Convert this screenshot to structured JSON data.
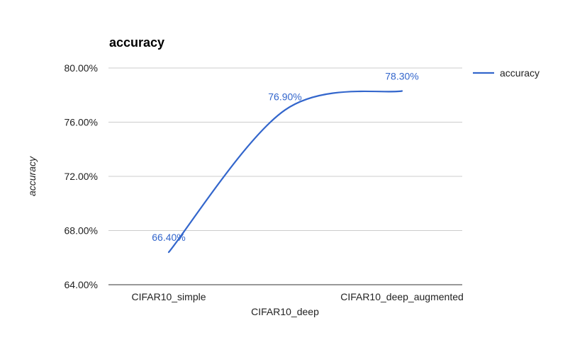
{
  "chart_data": {
    "type": "line",
    "title": "accuracy",
    "xlabel": "",
    "ylabel": "accuracy",
    "categories": [
      "CIFAR10_simple",
      "CIFAR10_deep",
      "CIFAR10_deep_augmented"
    ],
    "series": [
      {
        "name": "accuracy",
        "values": [
          66.4,
          76.9,
          78.3
        ],
        "labels": [
          "66.40%",
          "76.90%",
          "78.30%"
        ]
      }
    ],
    "ylim": [
      64,
      80
    ],
    "yticks": [
      "64.00%",
      "68.00%",
      "72.00%",
      "76.00%",
      "80.00%"
    ],
    "grid": true,
    "smooth": true,
    "legend": "right",
    "colors": {
      "line": "#3366cc",
      "grid": "#cccccc",
      "label": "#3366cc"
    }
  }
}
